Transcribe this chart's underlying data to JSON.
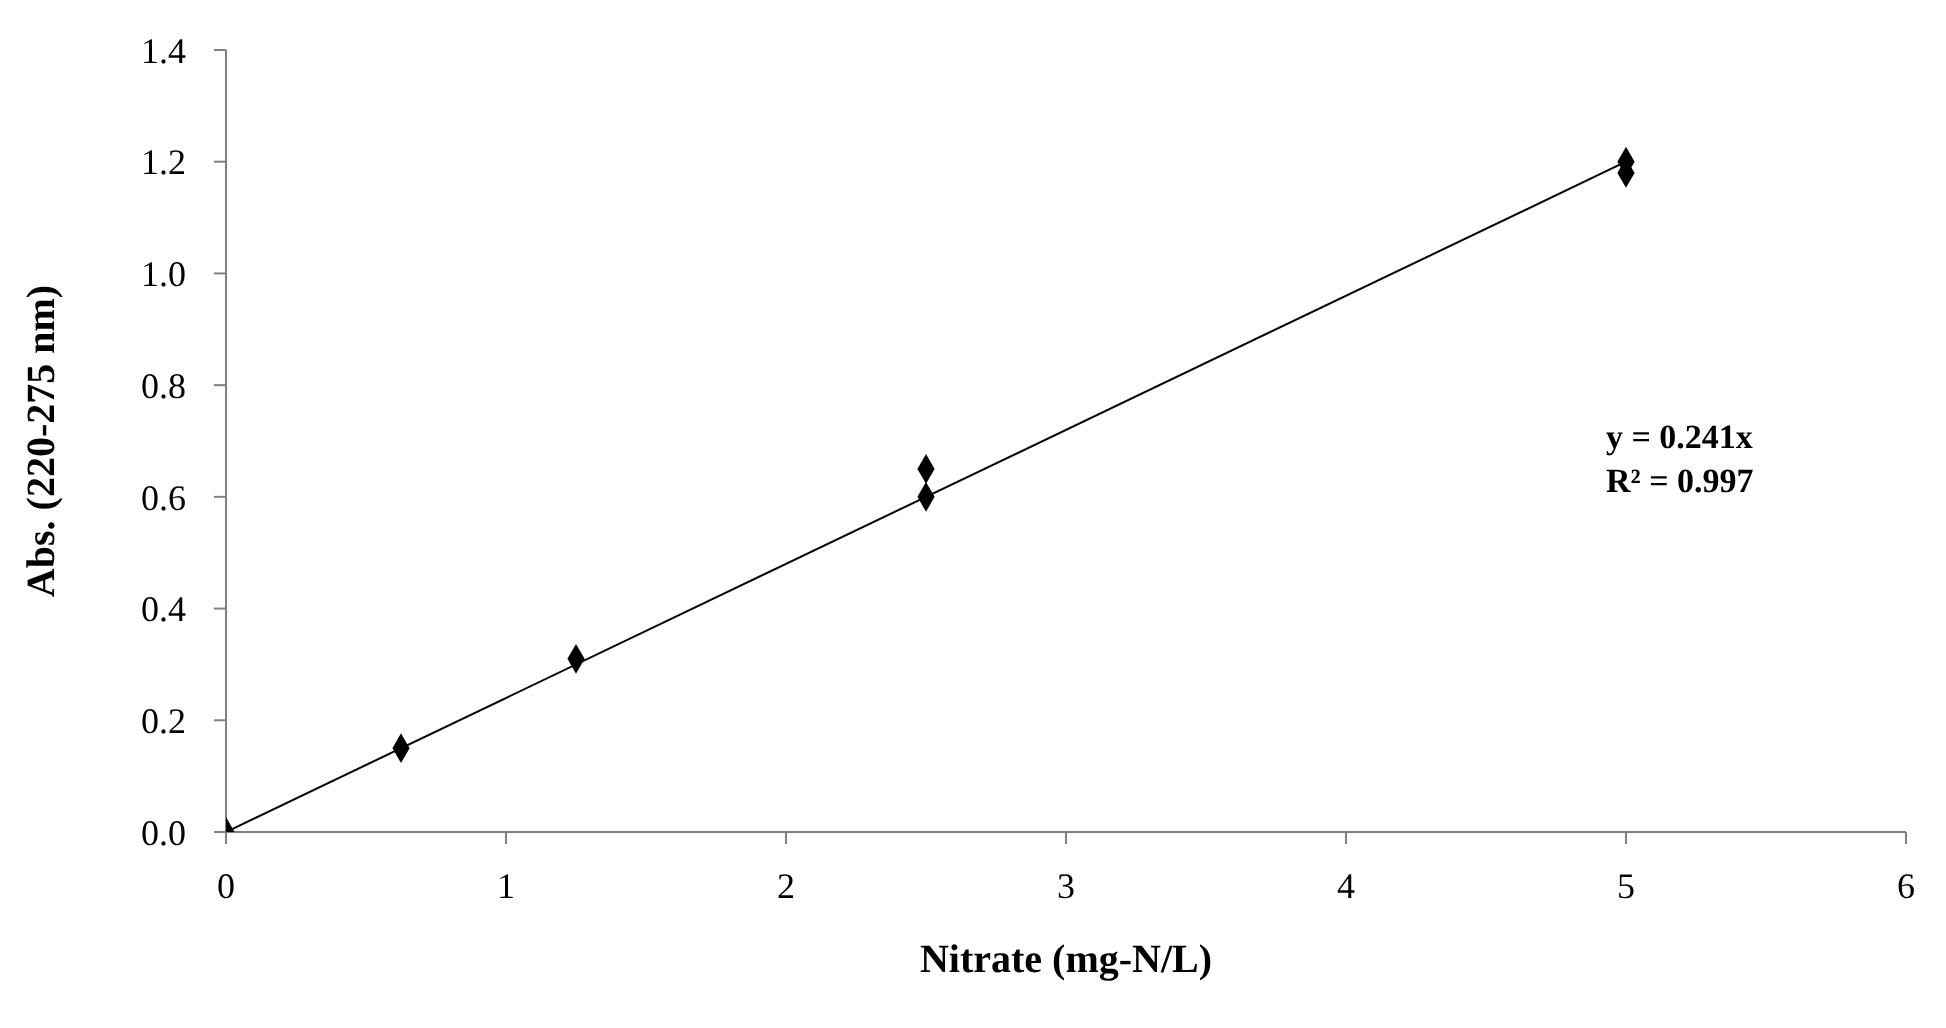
{
  "chart_data": {
    "type": "scatter",
    "xlabel": "Nitrate (mg-N/L)",
    "ylabel": "Abs. (220-275 nm)",
    "xlim": [
      0,
      6
    ],
    "xticks": [
      0,
      1,
      2,
      3,
      4,
      5,
      6
    ],
    "ylim": [
      0,
      1.4
    ],
    "yticks": [
      {
        "value": 0,
        "label": "0.0"
      },
      0.2,
      0.4,
      0.6,
      0.8,
      {
        "value": 1,
        "label": "1.0"
      },
      1.2,
      1.4
    ],
    "series": [
      {
        "color": "#000000",
        "marker": "diamond",
        "x": [
          0,
          0.625,
          1.25,
          2.5,
          2.5,
          5,
          5
        ],
        "values": [
          0,
          0.15,
          0.31,
          0.65,
          0.6,
          1.2,
          1.18
        ]
      },
      {
        "type": "line",
        "color": "#000000",
        "marker": "none",
        "x": [
          0,
          5
        ],
        "values": [
          0,
          1.2
        ]
      }
    ],
    "annotations": [
      "y = 0.241x\nR² = 0.997"
    ]
  }
}
